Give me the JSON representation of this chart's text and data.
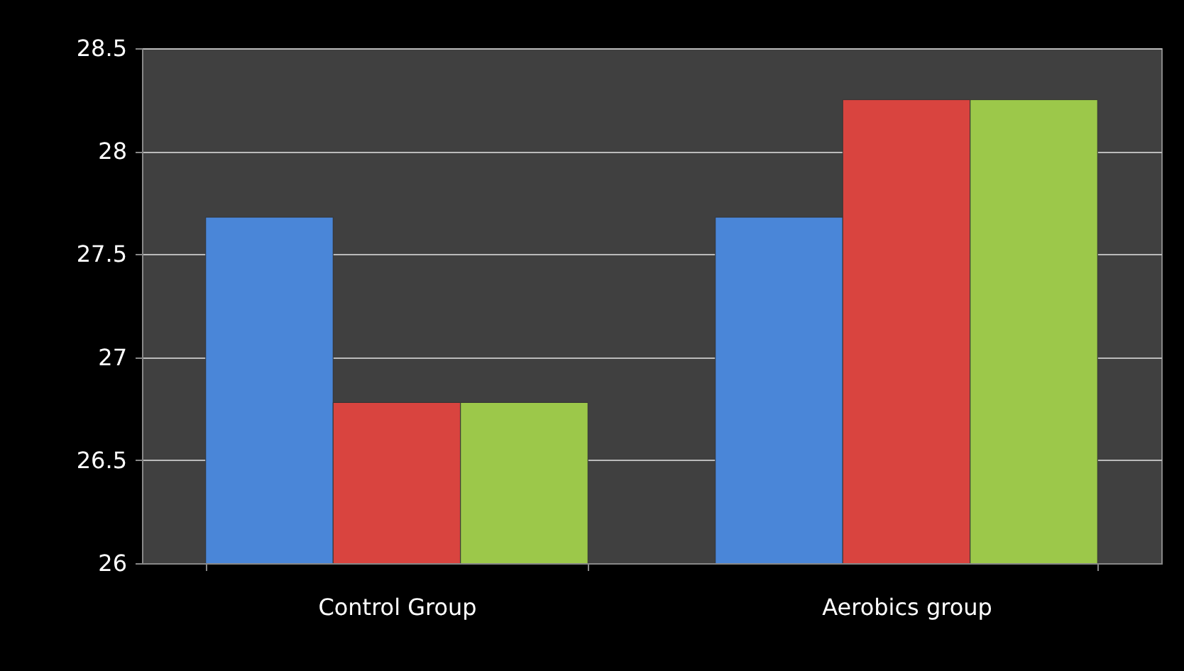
{
  "chart_data": {
    "type": "bar",
    "categories": [
      "Control Group",
      "Aerobics group"
    ],
    "series": [
      {
        "color": "#4a86d8",
        "values": [
          27.68,
          27.68
        ]
      },
      {
        "color": "#d9443f",
        "values": [
          26.78,
          28.25
        ]
      },
      {
        "color": "#9cc84a",
        "values": [
          26.78,
          28.25
        ]
      }
    ],
    "ylim": [
      26,
      28.5
    ],
    "yticks": [
      26,
      26.5,
      27,
      27.5,
      28,
      28.5
    ],
    "grid": "y",
    "legend": false
  }
}
